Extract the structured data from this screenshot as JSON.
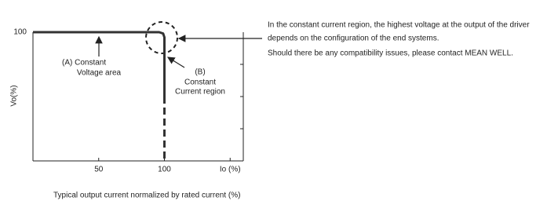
{
  "chart_data": {
    "type": "line",
    "y_label": "Vo(%)",
    "caption": "Typical output current normalized by rated current (%)",
    "xlim": [
      0,
      160
    ],
    "ylim": [
      0,
      100
    ],
    "xticks": [
      50,
      100,
      {
        "value": 150,
        "label": "Io (%)"
      }
    ],
    "yticks": [
      100
    ],
    "minor_yticks": [
      25,
      50,
      75
    ],
    "series": [
      {
        "x": [
          0,
          96,
          99,
          100,
          100
        ],
        "values": [
          100,
          100,
          99,
          96,
          50
        ],
        "color": "#333333",
        "dashed": false
      },
      {
        "x": [
          100,
          100
        ],
        "values": [
          50,
          0
        ],
        "color": "#333333",
        "dashed": true
      }
    ],
    "annotations": [
      {
        "lines": [
          "(A)   Constant",
          "Voltage area"
        ]
      },
      {
        "lines": [
          "(B)",
          "Constant",
          "Current region"
        ]
      }
    ],
    "notes": [
      "In the constant current region, the highest voltage at the output of the driver",
      "depends on the configuration of the end systems.",
      "Should there be any compatibility issues, please contact MEAN WELL."
    ]
  }
}
